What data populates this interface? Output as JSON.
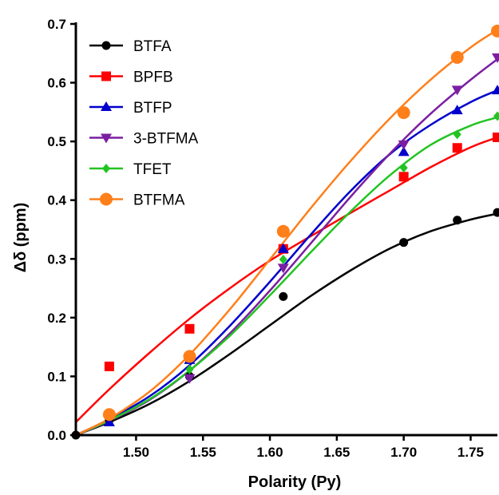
{
  "chart_data": {
    "type": "scatter",
    "title": "",
    "xlabel": "Polarity (Py)",
    "ylabel": "Δδ (ppm)",
    "xlim": [
      1.455,
      1.77
    ],
    "ylim": [
      0,
      0.7
    ],
    "x_ticks": [
      "1.50",
      "1.55",
      "1.60",
      "1.65",
      "1.70",
      "1.75"
    ],
    "y_ticks": [
      "0.0",
      "0.1",
      "0.2",
      "0.3",
      "0.4",
      "0.5",
      "0.6",
      "0.7"
    ],
    "grid": false,
    "legend_position": "top-left",
    "series": [
      {
        "name": "BTFA",
        "marker": "circle",
        "color": "#000000",
        "points": [
          [
            1.455,
            0.0
          ],
          [
            1.48,
            0.026
          ],
          [
            1.54,
            0.1
          ],
          [
            1.61,
            0.236
          ],
          [
            1.7,
            0.328
          ],
          [
            1.74,
            0.366
          ],
          [
            1.77,
            0.379
          ]
        ],
        "fit": [
          [
            1.455,
            0.0
          ],
          [
            1.48,
            0.022
          ],
          [
            1.51,
            0.053
          ],
          [
            1.54,
            0.092
          ],
          [
            1.57,
            0.138
          ],
          [
            1.6,
            0.187
          ],
          [
            1.63,
            0.236
          ],
          [
            1.66,
            0.28
          ],
          [
            1.69,
            0.318
          ],
          [
            1.72,
            0.347
          ],
          [
            1.75,
            0.367
          ],
          [
            1.77,
            0.377
          ]
        ]
      },
      {
        "name": "BPFB",
        "marker": "square",
        "color": "#ff0000",
        "points": [
          [
            1.48,
            0.117
          ],
          [
            1.54,
            0.181
          ],
          [
            1.61,
            0.317
          ],
          [
            1.7,
            0.44
          ],
          [
            1.74,
            0.489
          ],
          [
            1.77,
            0.507
          ]
        ],
        "fit": [
          [
            1.455,
            0.022
          ],
          [
            1.48,
            0.078
          ],
          [
            1.51,
            0.14
          ],
          [
            1.54,
            0.198
          ],
          [
            1.57,
            0.25
          ],
          [
            1.6,
            0.297
          ],
          [
            1.63,
            0.338
          ],
          [
            1.66,
            0.378
          ],
          [
            1.69,
            0.417
          ],
          [
            1.72,
            0.456
          ],
          [
            1.75,
            0.49
          ],
          [
            1.77,
            0.507
          ]
        ]
      },
      {
        "name": "BTFP",
        "marker": "triangle-up",
        "color": "#0000cc",
        "points": [
          [
            1.48,
            0.022
          ],
          [
            1.54,
            0.128
          ],
          [
            1.61,
            0.317
          ],
          [
            1.7,
            0.482
          ],
          [
            1.74,
            0.553
          ],
          [
            1.77,
            0.587
          ]
        ],
        "fit": [
          [
            1.455,
            0.0
          ],
          [
            1.48,
            0.027
          ],
          [
            1.51,
            0.066
          ],
          [
            1.54,
            0.119
          ],
          [
            1.57,
            0.186
          ],
          [
            1.6,
            0.261
          ],
          [
            1.63,
            0.34
          ],
          [
            1.66,
            0.415
          ],
          [
            1.69,
            0.479
          ],
          [
            1.72,
            0.528
          ],
          [
            1.75,
            0.567
          ],
          [
            1.77,
            0.587
          ]
        ]
      },
      {
        "name": "3-BTFMA",
        "marker": "triangle-down",
        "color": "#7b1fa2",
        "points": [
          [
            1.54,
            0.097
          ],
          [
            1.61,
            0.285
          ],
          [
            1.7,
            0.495
          ],
          [
            1.74,
            0.588
          ],
          [
            1.77,
            0.643
          ]
        ],
        "fit": [
          [
            1.455,
            0.0
          ],
          [
            1.48,
            0.024
          ],
          [
            1.51,
            0.06
          ],
          [
            1.54,
            0.11
          ],
          [
            1.57,
            0.173
          ],
          [
            1.6,
            0.246
          ],
          [
            1.63,
            0.325
          ],
          [
            1.66,
            0.405
          ],
          [
            1.69,
            0.48
          ],
          [
            1.72,
            0.547
          ],
          [
            1.75,
            0.605
          ],
          [
            1.77,
            0.64
          ]
        ]
      },
      {
        "name": "TFET",
        "marker": "diamond",
        "color": "#22c422",
        "points": [
          [
            1.54,
            0.112
          ],
          [
            1.61,
            0.299
          ],
          [
            1.7,
            0.455
          ],
          [
            1.74,
            0.512
          ],
          [
            1.77,
            0.543
          ]
        ],
        "fit": [
          [
            1.455,
            0.0
          ],
          [
            1.48,
            0.025
          ],
          [
            1.51,
            0.061
          ],
          [
            1.54,
            0.11
          ],
          [
            1.57,
            0.169
          ],
          [
            1.6,
            0.238
          ],
          [
            1.63,
            0.31
          ],
          [
            1.66,
            0.38
          ],
          [
            1.69,
            0.443
          ],
          [
            1.72,
            0.494
          ],
          [
            1.75,
            0.527
          ],
          [
            1.77,
            0.541
          ]
        ]
      },
      {
        "name": "BTFMA",
        "marker": "circle-large",
        "color": "#ff7f1a",
        "points": [
          [
            1.48,
            0.035
          ],
          [
            1.54,
            0.134
          ],
          [
            1.61,
            0.347
          ],
          [
            1.7,
            0.549
          ],
          [
            1.74,
            0.643
          ],
          [
            1.77,
            0.688
          ]
        ],
        "fit": [
          [
            1.455,
            0.0
          ],
          [
            1.48,
            0.028
          ],
          [
            1.51,
            0.074
          ],
          [
            1.54,
            0.137
          ],
          [
            1.57,
            0.214
          ],
          [
            1.6,
            0.299
          ],
          [
            1.63,
            0.385
          ],
          [
            1.66,
            0.466
          ],
          [
            1.69,
            0.54
          ],
          [
            1.72,
            0.605
          ],
          [
            1.75,
            0.66
          ],
          [
            1.77,
            0.69
          ]
        ]
      }
    ]
  }
}
